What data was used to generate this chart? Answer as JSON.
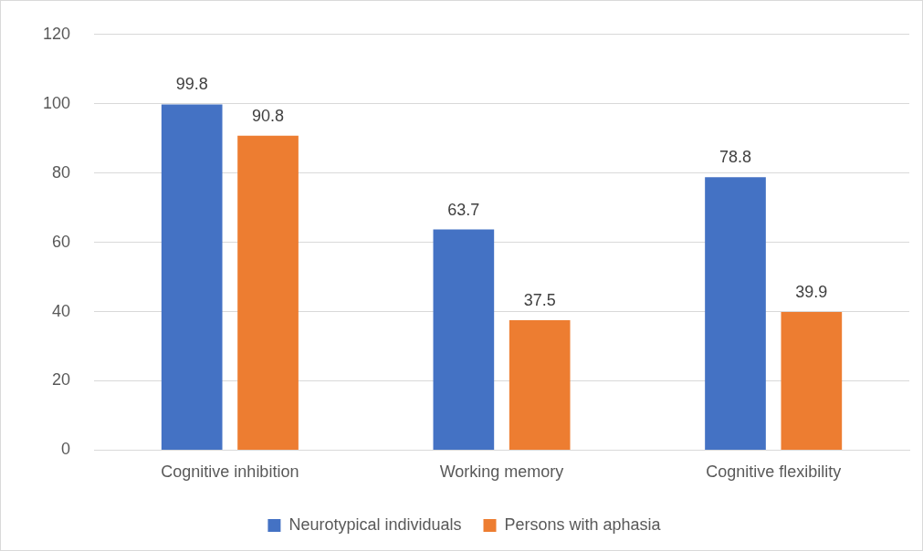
{
  "chart_data": {
    "type": "bar",
    "categories": [
      "Cognitive inhibition",
      "Working memory",
      "Cognitive flexibility"
    ],
    "series": [
      {
        "name": "Neurotypical individuals",
        "color": "#4472c4",
        "values": [
          99.8,
          63.7,
          78.8
        ]
      },
      {
        "name": "Persons with aphasia",
        "color": "#ed7d31",
        "values": [
          90.8,
          37.5,
          39.9
        ]
      }
    ],
    "ylim": [
      0,
      120
    ],
    "yticks": [
      0,
      20,
      40,
      60,
      80,
      100,
      120
    ],
    "grid": "y",
    "legend": "bottom",
    "data_labels": true
  }
}
